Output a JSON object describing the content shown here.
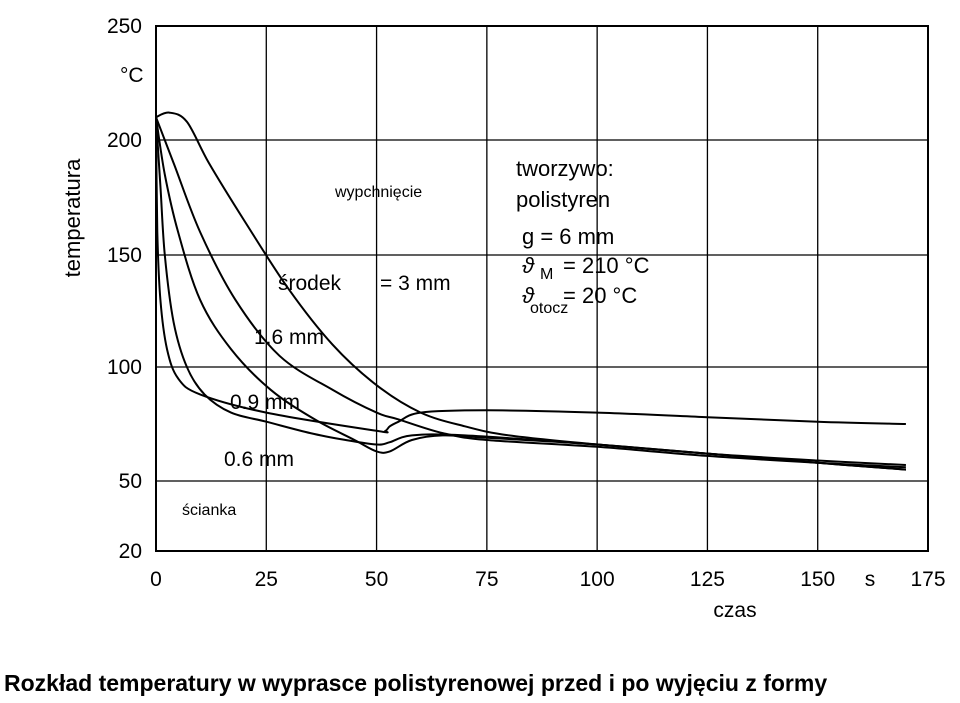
{
  "caption": "Rozkład temperatury w wyprasce polistyrenowej przed i po wyjęciu z formy",
  "chart_data": {
    "type": "line",
    "ylabel": "temperatura",
    "yunit": "°C",
    "xlabel": "czas",
    "xunit": "s",
    "xlim": [
      0,
      175
    ],
    "ylim": [
      20,
      250
    ],
    "xticks": [
      0,
      25,
      50,
      75,
      100,
      125,
      150,
      175
    ],
    "yticks": [
      20,
      50,
      100,
      150,
      200,
      250
    ],
    "grid": true,
    "y_scale_break": "50 to 20",
    "series": [
      {
        "name": "środek = 3 mm",
        "points": [
          [
            0,
            210
          ],
          [
            3,
            212
          ],
          [
            7,
            208
          ],
          [
            12,
            190
          ],
          [
            20,
            165
          ],
          [
            30,
            135
          ],
          [
            40,
            110
          ],
          [
            50,
            92
          ],
          [
            60,
            80
          ],
          [
            70,
            74
          ],
          [
            80,
            70
          ],
          [
            100,
            66
          ],
          [
            125,
            62
          ],
          [
            150,
            59
          ],
          [
            170,
            57
          ]
        ]
      },
      {
        "name": "1.6 mm",
        "points": [
          [
            0,
            210
          ],
          [
            4,
            190
          ],
          [
            10,
            160
          ],
          [
            18,
            130
          ],
          [
            28,
            105
          ],
          [
            40,
            90
          ],
          [
            50,
            80
          ],
          [
            55,
            77
          ],
          [
            65,
            71
          ],
          [
            75,
            68
          ],
          [
            100,
            65
          ],
          [
            125,
            61
          ],
          [
            150,
            58
          ],
          [
            170,
            56
          ]
        ]
      },
      {
        "name": "0.9 mm",
        "points": [
          [
            0,
            210
          ],
          [
            2,
            185
          ],
          [
            5,
            160
          ],
          [
            10,
            130
          ],
          [
            17,
            108
          ],
          [
            26,
            90
          ],
          [
            36,
            77
          ],
          [
            45,
            68
          ],
          [
            50,
            63
          ],
          [
            53,
            63
          ],
          [
            58,
            68
          ],
          [
            65,
            70
          ],
          [
            75,
            69
          ],
          [
            100,
            66
          ],
          [
            125,
            62
          ],
          [
            150,
            58
          ],
          [
            170,
            55
          ]
        ]
      },
      {
        "name": "0.6 mm",
        "points": [
          [
            0,
            210
          ],
          [
            1,
            180
          ],
          [
            2,
            150
          ],
          [
            4,
            120
          ],
          [
            7,
            100
          ],
          [
            11,
            88
          ],
          [
            17,
            80
          ],
          [
            25,
            76
          ],
          [
            35,
            71
          ],
          [
            43,
            68
          ],
          [
            50,
            66
          ],
          [
            53,
            67
          ],
          [
            58,
            70
          ],
          [
            70,
            70
          ],
          [
            100,
            66
          ],
          [
            125,
            62
          ],
          [
            150,
            58
          ],
          [
            170,
            55
          ]
        ]
      },
      {
        "name": "ścianka",
        "points": [
          [
            0,
            210
          ],
          [
            0.3,
            160
          ],
          [
            1,
            130
          ],
          [
            2.5,
            108
          ],
          [
            5,
            95
          ],
          [
            10,
            88
          ],
          [
            25,
            80
          ],
          [
            50,
            72
          ],
          [
            52,
            72
          ],
          [
            53,
            74
          ],
          [
            55,
            76
          ],
          [
            60,
            80
          ],
          [
            75,
            81
          ],
          [
            100,
            80
          ],
          [
            125,
            78
          ],
          [
            150,
            76
          ],
          [
            170,
            75
          ]
        ]
      }
    ],
    "annotations": [
      {
        "text": "wypchnięcie"
      },
      {
        "text": "tworzywo:"
      },
      {
        "text": "polistyren"
      },
      {
        "text": "g = 6 mm"
      },
      {
        "text": "ϑ"
      },
      {
        "text": "M"
      },
      {
        "text": "= 210 °C"
      },
      {
        "text": "ϑ"
      },
      {
        "text": "otocz"
      },
      {
        "text": "= 20 °C"
      },
      {
        "text": "środek"
      },
      {
        "text": "= 3 mm"
      },
      {
        "text": "1.6 mm"
      },
      {
        "text": "0.9 mm"
      },
      {
        "text": "0.6 mm"
      },
      {
        "text": "ścianka"
      }
    ]
  }
}
